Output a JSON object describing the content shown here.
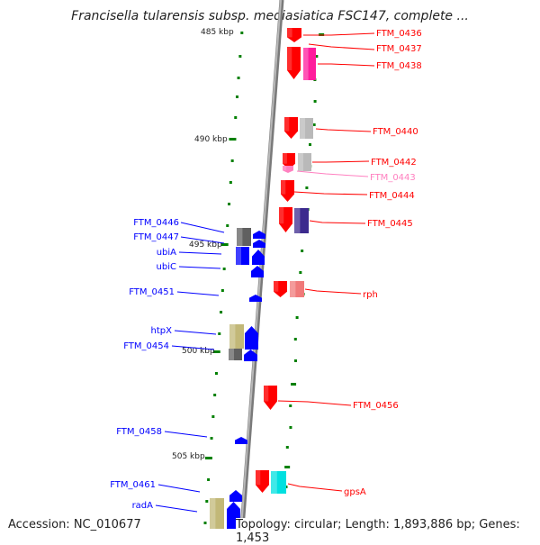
{
  "title": "Francisella tularensis subsp. mediasiatica FSC147, complete ...",
  "footer": {
    "accession": "Accession: NC_010677",
    "topology": "Topology: circular; Length: 1,893,886 bp; Genes: 1,453"
  },
  "ticks": [
    "485 kbp",
    "490 kbp",
    "495 kbp",
    "500 kbp",
    "505 kbp"
  ],
  "colors": {
    "forward_gene": "#ff0000",
    "reverse_gene": "#0000ff",
    "backbone": "#909090",
    "tick_mark": "#008000"
  },
  "forward_genes": [
    {
      "label": "FTM_0436",
      "color": "#ff0000"
    },
    {
      "label": "FTM_0437",
      "color": "#ff0000"
    },
    {
      "label": "FTM_0438",
      "color": "#ff0000"
    },
    {
      "label": "FTM_0440",
      "color": "#ff0000"
    },
    {
      "label": "FTM_0442",
      "color": "#ff0000"
    },
    {
      "label": "FTM_0443",
      "color": "#ff80c0"
    },
    {
      "label": "FTM_0444",
      "color": "#ff0000"
    },
    {
      "label": "FTM_0445",
      "color": "#ff0000"
    },
    {
      "label": "rph",
      "color": "#ff0000"
    },
    {
      "label": "FTM_0456",
      "color": "#ff0000"
    },
    {
      "label": "gpsA",
      "color": "#ff0000"
    }
  ],
  "reverse_genes": [
    {
      "label": "FTM_0446"
    },
    {
      "label": "FTM_0447"
    },
    {
      "label": "ubiA"
    },
    {
      "label": "ubiC"
    },
    {
      "label": "FTM_0451"
    },
    {
      "label": "htpX"
    },
    {
      "label": "FTM_0454"
    },
    {
      "label": "FTM_0458"
    },
    {
      "label": "FTM_0461"
    },
    {
      "label": "radA"
    }
  ]
}
